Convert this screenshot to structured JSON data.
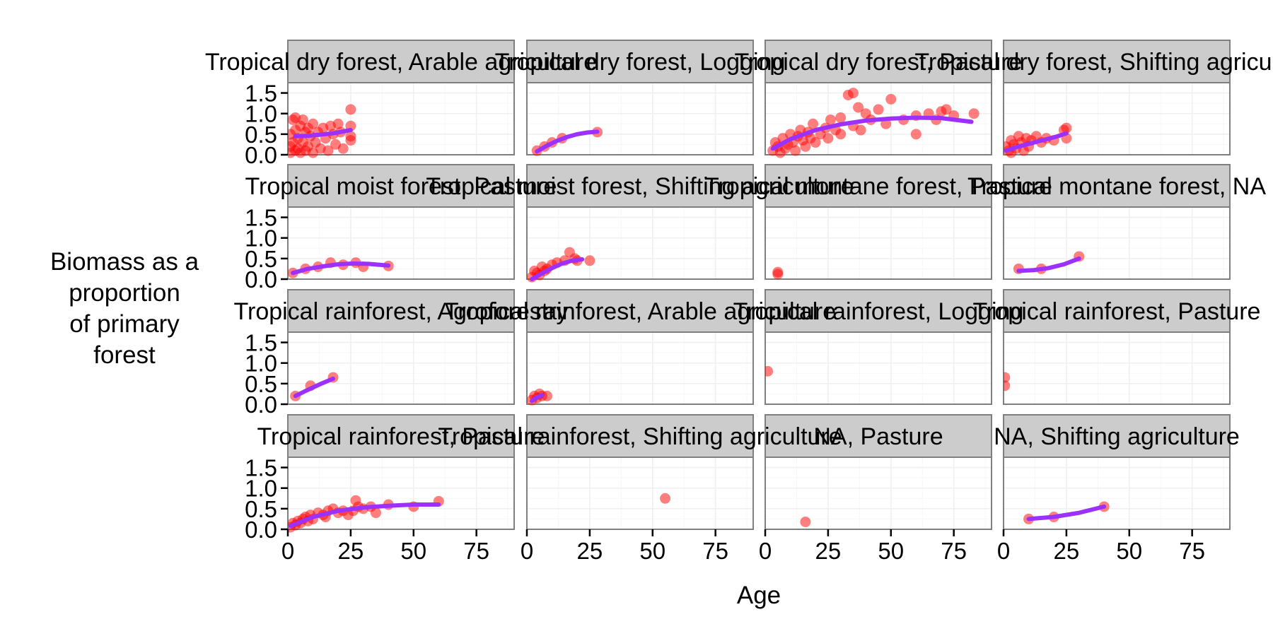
{
  "chart_data": {
    "type": "scatter",
    "facet_layout": {
      "rows": 4,
      "cols": 4
    },
    "xlabel": "Age",
    "ylabel": "Biomass as a proportion of primary forest",
    "ylabel_lines": [
      "Biomass as a",
      "proportion",
      "of primary",
      "forest"
    ],
    "xlim": [
      0,
      90
    ],
    "ylim": [
      0,
      1.75
    ],
    "x_ticks": [
      0,
      25,
      50,
      75
    ],
    "x_tick_labels": [
      "0",
      "25",
      "50",
      "75"
    ],
    "y_ticks": [
      0,
      0.5,
      1.0,
      1.5
    ],
    "y_tick_labels": [
      "0.0",
      "0.5",
      "1.0",
      "1.5"
    ],
    "point_color": "#ff0000",
    "fit_color": "#9b30ff",
    "panels": [
      {
        "label": "Tropical dry forest, Arable agriculture",
        "points": [
          [
            1,
            0.05
          ],
          [
            1,
            0.2
          ],
          [
            1,
            0.5
          ],
          [
            2,
            0.85
          ],
          [
            2,
            0.3
          ],
          [
            3,
            0.1
          ],
          [
            3,
            0.6
          ],
          [
            3,
            0.9
          ],
          [
            4,
            0.15
          ],
          [
            4,
            0.4
          ],
          [
            5,
            0.7
          ],
          [
            5,
            0.05
          ],
          [
            6,
            0.3
          ],
          [
            6,
            0.85
          ],
          [
            7,
            0.55
          ],
          [
            7,
            0.1
          ],
          [
            8,
            0.2
          ],
          [
            8,
            0.65
          ],
          [
            9,
            0.45
          ],
          [
            10,
            0.75
          ],
          [
            10,
            0.05
          ],
          [
            11,
            0.3
          ],
          [
            12,
            0.55
          ],
          [
            13,
            0.15
          ],
          [
            14,
            0.65
          ],
          [
            15,
            0.4
          ],
          [
            16,
            0.1
          ],
          [
            17,
            0.7
          ],
          [
            18,
            0.5
          ],
          [
            19,
            0.25
          ],
          [
            20,
            0.75
          ],
          [
            21,
            0.55
          ],
          [
            22,
            0.15
          ],
          [
            25,
            0.45
          ],
          [
            25,
            0.7
          ],
          [
            25,
            0.35
          ],
          [
            25,
            1.1
          ]
        ],
        "fit": [
          [
            3,
            0.45
          ],
          [
            8,
            0.46
          ],
          [
            13,
            0.49
          ],
          [
            18,
            0.52
          ],
          [
            25,
            0.6
          ]
        ]
      },
      {
        "label": "Tropical dry forest, Logging",
        "points": [
          [
            4,
            0.1
          ],
          [
            7,
            0.2
          ],
          [
            10,
            0.3
          ],
          [
            14,
            0.4
          ],
          [
            28,
            0.55
          ]
        ],
        "fit": [
          [
            4,
            0.08
          ],
          [
            8,
            0.22
          ],
          [
            12,
            0.34
          ],
          [
            16,
            0.43
          ],
          [
            20,
            0.5
          ],
          [
            24,
            0.54
          ],
          [
            28,
            0.56
          ]
        ]
      },
      {
        "label": "Tropical dry forest, Pasture",
        "points": [
          [
            3,
            0.1
          ],
          [
            4,
            0.3
          ],
          [
            5,
            0.2
          ],
          [
            6,
            0.05
          ],
          [
            7,
            0.4
          ],
          [
            8,
            0.15
          ],
          [
            9,
            0.25
          ],
          [
            10,
            0.5
          ],
          [
            11,
            0.3
          ],
          [
            12,
            0.1
          ],
          [
            13,
            0.45
          ],
          [
            14,
            0.6
          ],
          [
            15,
            0.35
          ],
          [
            16,
            0.2
          ],
          [
            17,
            0.55
          ],
          [
            18,
            0.4
          ],
          [
            19,
            0.75
          ],
          [
            20,
            0.3
          ],
          [
            22,
            0.5
          ],
          [
            24,
            0.65
          ],
          [
            25,
            0.4
          ],
          [
            26,
            0.85
          ],
          [
            28,
            0.6
          ],
          [
            30,
            0.5
          ],
          [
            30,
            0.9
          ],
          [
            33,
            1.45
          ],
          [
            35,
            1.5
          ],
          [
            35,
            0.7
          ],
          [
            37,
            1.15
          ],
          [
            38,
            0.6
          ],
          [
            40,
            1.0
          ],
          [
            42,
            0.85
          ],
          [
            45,
            1.1
          ],
          [
            48,
            0.75
          ],
          [
            50,
            1.35
          ],
          [
            55,
            0.85
          ],
          [
            60,
            0.5
          ],
          [
            60,
            0.95
          ],
          [
            65,
            1.0
          ],
          [
            68,
            0.85
          ],
          [
            70,
            1.05
          ],
          [
            72,
            1.1
          ],
          [
            75,
            0.95
          ],
          [
            83,
            1.0
          ]
        ],
        "fit": [
          [
            3,
            0.15
          ],
          [
            10,
            0.38
          ],
          [
            20,
            0.6
          ],
          [
            30,
            0.74
          ],
          [
            40,
            0.83
          ],
          [
            50,
            0.88
          ],
          [
            60,
            0.9
          ],
          [
            70,
            0.89
          ],
          [
            82,
            0.8
          ]
        ]
      },
      {
        "label": "Tropical dry forest, Shifting agriculture",
        "points": [
          [
            1,
            0.2
          ],
          [
            2,
            0.1
          ],
          [
            3,
            0.05
          ],
          [
            3,
            0.35
          ],
          [
            4,
            0.25
          ],
          [
            5,
            0.15
          ],
          [
            6,
            0.45
          ],
          [
            7,
            0.3
          ],
          [
            8,
            0.1
          ],
          [
            9,
            0.4
          ],
          [
            10,
            0.2
          ],
          [
            11,
            0.35
          ],
          [
            13,
            0.45
          ],
          [
            15,
            0.3
          ],
          [
            17,
            0.4
          ],
          [
            20,
            0.35
          ],
          [
            24,
            0.6
          ],
          [
            25,
            0.4
          ],
          [
            25,
            0.65
          ]
        ],
        "fit": [
          [
            1,
            0.1
          ],
          [
            6,
            0.2
          ],
          [
            11,
            0.28
          ],
          [
            16,
            0.36
          ],
          [
            21,
            0.44
          ],
          [
            25,
            0.52
          ]
        ]
      },
      {
        "label": "Tropical moist forest, Pasture",
        "points": [
          [
            2,
            0.15
          ],
          [
            7,
            0.25
          ],
          [
            12,
            0.3
          ],
          [
            17,
            0.4
          ],
          [
            22,
            0.35
          ],
          [
            27,
            0.4
          ],
          [
            30,
            0.3
          ],
          [
            40,
            0.32
          ]
        ],
        "fit": [
          [
            2,
            0.15
          ],
          [
            8,
            0.25
          ],
          [
            14,
            0.31
          ],
          [
            20,
            0.36
          ],
          [
            26,
            0.38
          ],
          [
            32,
            0.37
          ],
          [
            40,
            0.33
          ]
        ]
      },
      {
        "label": "Tropical moist forest, Shifting agriculture",
        "points": [
          [
            2,
            0.05
          ],
          [
            3,
            0.2
          ],
          [
            4,
            0.15
          ],
          [
            5,
            0.1
          ],
          [
            6,
            0.3
          ],
          [
            7,
            0.2
          ],
          [
            8,
            0.25
          ],
          [
            10,
            0.35
          ],
          [
            12,
            0.4
          ],
          [
            15,
            0.45
          ],
          [
            17,
            0.65
          ],
          [
            19,
            0.5
          ],
          [
            20,
            0.45
          ],
          [
            25,
            0.45
          ]
        ],
        "fit": [
          [
            2,
            0.0
          ],
          [
            6,
            0.14
          ],
          [
            10,
            0.27
          ],
          [
            14,
            0.38
          ],
          [
            18,
            0.45
          ],
          [
            22,
            0.48
          ]
        ]
      },
      {
        "label": "Tropical montane forest, Pasture",
        "points": [
          [
            5,
            0.12
          ],
          [
            5,
            0.17
          ]
        ],
        "fit": []
      },
      {
        "label": "Tropical montane forest, NA",
        "points": [
          [
            6,
            0.25
          ],
          [
            15,
            0.25
          ],
          [
            30,
            0.55
          ]
        ],
        "fit": [
          [
            6,
            0.2
          ],
          [
            12,
            0.22
          ],
          [
            18,
            0.27
          ],
          [
            24,
            0.36
          ],
          [
            30,
            0.5
          ]
        ]
      },
      {
        "label": "Tropical rainforest, Agroforestry",
        "points": [
          [
            3,
            0.2
          ],
          [
            9,
            0.45
          ],
          [
            18,
            0.65
          ]
        ],
        "fit": [
          [
            3,
            0.2
          ],
          [
            8,
            0.35
          ],
          [
            13,
            0.49
          ],
          [
            18,
            0.62
          ]
        ]
      },
      {
        "label": "Tropical rainforest, Arable agriculture",
        "points": [
          [
            2,
            0.1
          ],
          [
            3,
            0.2
          ],
          [
            4,
            0.15
          ],
          [
            5,
            0.25
          ],
          [
            6,
            0.2
          ],
          [
            8,
            0.2
          ]
        ],
        "fit": [
          [
            2,
            0.08
          ],
          [
            4,
            0.17
          ],
          [
            6,
            0.22
          ]
        ]
      },
      {
        "label": "Tropical rainforest, Logging",
        "points": [
          [
            1,
            0.8
          ]
        ],
        "fit": []
      },
      {
        "label": "Tropical rainforest, Pasture",
        "points": [
          [
            0.5,
            0.65
          ],
          [
            0.5,
            0.45
          ]
        ],
        "fit": []
      },
      {
        "label": "Tropical rainforest, Pasture",
        "points": [
          [
            1,
            0.05
          ],
          [
            2,
            0.15
          ],
          [
            3,
            0.1
          ],
          [
            4,
            0.2
          ],
          [
            5,
            0.15
          ],
          [
            6,
            0.25
          ],
          [
            7,
            0.3
          ],
          [
            8,
            0.2
          ],
          [
            9,
            0.35
          ],
          [
            10,
            0.25
          ],
          [
            12,
            0.4
          ],
          [
            14,
            0.35
          ],
          [
            15,
            0.3
          ],
          [
            16,
            0.45
          ],
          [
            18,
            0.5
          ],
          [
            20,
            0.4
          ],
          [
            22,
            0.45
          ],
          [
            24,
            0.35
          ],
          [
            26,
            0.45
          ],
          [
            27,
            0.7
          ],
          [
            28,
            0.55
          ],
          [
            30,
            0.5
          ],
          [
            33,
            0.55
          ],
          [
            35,
            0.4
          ],
          [
            40,
            0.6
          ],
          [
            50,
            0.55
          ],
          [
            60,
            0.68
          ]
        ],
        "fit": [
          [
            1,
            0.08
          ],
          [
            10,
            0.3
          ],
          [
            20,
            0.45
          ],
          [
            30,
            0.53
          ],
          [
            40,
            0.57
          ],
          [
            50,
            0.6
          ],
          [
            60,
            0.6
          ]
        ]
      },
      {
        "label": "Tropical rainforest, Shifting agriculture",
        "points": [
          [
            55,
            0.75
          ]
        ],
        "fit": []
      },
      {
        "label": "NA, Pasture",
        "points": [
          [
            16,
            0.18
          ]
        ],
        "fit": []
      },
      {
        "label": "NA, Shifting agriculture",
        "points": [
          [
            10,
            0.25
          ],
          [
            20,
            0.3
          ],
          [
            40,
            0.55
          ]
        ],
        "fit": [
          [
            10,
            0.25
          ],
          [
            20,
            0.3
          ],
          [
            30,
            0.4
          ],
          [
            40,
            0.55
          ]
        ]
      }
    ]
  }
}
